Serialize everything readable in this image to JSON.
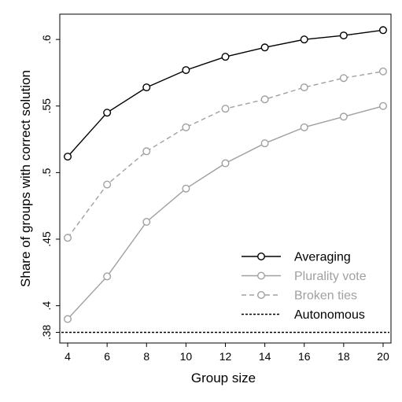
{
  "chart_data": {
    "type": "line",
    "xlabel": "Group size",
    "ylabel": "Share of groups with correct solution",
    "x": [
      4,
      6,
      8,
      10,
      12,
      14,
      16,
      18,
      20
    ],
    "xticks": [
      "4",
      "6",
      "8",
      "10",
      "12",
      "14",
      "16",
      "18",
      "20"
    ],
    "yticks": [
      {
        "value": 0.38,
        "label": ".38"
      },
      {
        "value": 0.4,
        "label": ".4"
      },
      {
        "value": 0.45,
        "label": ".45"
      },
      {
        "value": 0.5,
        "label": ".5"
      },
      {
        "value": 0.55,
        "label": ".55"
      },
      {
        "value": 0.6,
        "label": ".6"
      }
    ],
    "xlim": [
      3.6,
      20.4
    ],
    "ylim": [
      0.372,
      0.619
    ],
    "grid": false,
    "legend_position": "bottom-right",
    "series": [
      {
        "name": "Averaging",
        "color": "#000000",
        "style": "solid",
        "marker": "circle",
        "values": [
          0.512,
          0.545,
          0.564,
          0.577,
          0.587,
          0.594,
          0.6,
          0.603,
          0.607
        ]
      },
      {
        "name": "Plurality vote",
        "color": "#a0a0a0",
        "style": "solid",
        "marker": "circle",
        "values": [
          0.39,
          0.422,
          0.463,
          0.488,
          0.507,
          0.522,
          0.534,
          0.542,
          0.55
        ]
      },
      {
        "name": "Broken ties",
        "color": "#a0a0a0",
        "style": "dashed",
        "marker": "circle",
        "values": [
          0.451,
          0.491,
          0.516,
          0.534,
          0.548,
          0.555,
          0.564,
          0.571,
          0.576
        ]
      },
      {
        "name": "Autonomous",
        "color": "#000000",
        "style": "dotted",
        "marker": "none",
        "values": [
          0.38,
          0.38,
          0.38,
          0.38,
          0.38,
          0.38,
          0.38,
          0.38,
          0.38
        ]
      }
    ]
  }
}
